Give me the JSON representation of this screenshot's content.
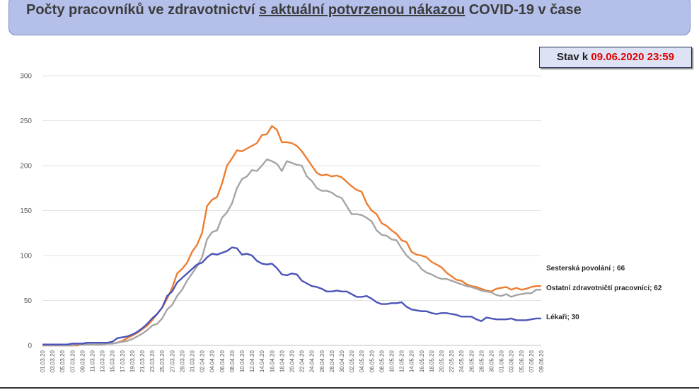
{
  "header": {
    "title_pre": "Počty pracovníků ve zdravotnictví ",
    "title_underlined": "s aktuální potvrzenou nákazou",
    "title_post": " COVID-19 v čase"
  },
  "status": {
    "prefix": "Stav k ",
    "datetime": "09.06.2020 23:59"
  },
  "chart_data": {
    "type": "line",
    "ylim": [
      0,
      300
    ],
    "yticks": [
      0,
      50,
      100,
      150,
      200,
      250,
      300
    ],
    "grid": "horizontal",
    "x": [
      "01.03.20",
      "02.03.20",
      "03.03.20",
      "04.03.20",
      "05.03.20",
      "06.03.20",
      "07.03.20",
      "08.03.20",
      "09.03.20",
      "10.03.20",
      "11.03.20",
      "12.03.20",
      "13.03.20",
      "14.03.20",
      "15.03.20",
      "16.03.20",
      "17.03.20",
      "18.03.20",
      "19.03.20",
      "20.03.20",
      "21.03.20",
      "22.03.20",
      "23.03.20",
      "24.03.20",
      "25.03.20",
      "26.03.20",
      "27.03.20",
      "28.03.20",
      "29.03.20",
      "30.03.20",
      "31.03.20",
      "01.04.20",
      "02.04.20",
      "03.04.20",
      "04.04.20",
      "05.04.20",
      "06.04.20",
      "07.04.20",
      "08.04.20",
      "09.04.20",
      "10.04.20",
      "11.04.20",
      "12.04.20",
      "13.04.20",
      "14.04.20",
      "15.04.20",
      "16.04.20",
      "17.04.20",
      "18.04.20",
      "19.04.20",
      "20.04.20",
      "21.04.20",
      "22.04.20",
      "23.04.20",
      "24.04.20",
      "25.04.20",
      "26.04.20",
      "27.04.20",
      "28.04.20",
      "29.04.20",
      "30.04.20",
      "01.05.20",
      "02.05.20",
      "03.05.20",
      "04.05.20",
      "05.05.20",
      "06.05.20",
      "07.05.20",
      "08.05.20",
      "09.05.20",
      "10.05.20",
      "11.05.20",
      "12.05.20",
      "13.05.20",
      "14.05.20",
      "15.05.20",
      "16.05.20",
      "17.05.20",
      "18.05.20",
      "19.05.20",
      "20.05.20",
      "21.05.20",
      "22.05.20",
      "23.05.20",
      "24.05.20",
      "25.05.20",
      "26.05.20",
      "27.05.20",
      "28.05.20",
      "29.05.20",
      "30.05.20",
      "31.05.20",
      "01.06.20",
      "02.06.20",
      "03.06.20",
      "04.06.20",
      "05.06.20",
      "06.06.20",
      "07.06.20",
      "08.06.20",
      "09.06.20"
    ],
    "xtick_labels": [
      "01.03.20",
      "03.03.20",
      "05.03.20",
      "07.03.20",
      "09.03.20",
      "11.03.20",
      "13.03.20",
      "15.03.20",
      "17.03.20",
      "19.03.20",
      "21.03.20",
      "23.03.20",
      "25.03.20",
      "27.03.20",
      "29.03.20",
      "31.03.20",
      "02.04.20",
      "04.04.20",
      "06.04.20",
      "08.04.20",
      "10.04.20",
      "12.04.20",
      "14.04.20",
      "16.04.20",
      "18.04.20",
      "20.04.20",
      "22.04.20",
      "24.04.20",
      "26.04.20",
      "28.04.20",
      "30.04.20",
      "02.05.20",
      "04.05.20",
      "06.05.20",
      "08.05.20",
      "10.05.20",
      "12.05.20",
      "14.05.20",
      "16.05.20",
      "18.05.20",
      "20.05.20",
      "22.05.20",
      "24.05.20",
      "26.05.20",
      "28.05.20",
      "30.05.20",
      "01.06.20",
      "03.06.20",
      "05.06.20",
      "07.06.20",
      "09.06.20"
    ],
    "series": [
      {
        "name": "Sesterská povolání",
        "end_label": "Sesterská povolání ; 66",
        "color": "#ed7d31",
        "values": [
          0,
          0,
          0,
          0,
          0,
          0,
          0,
          0,
          1,
          1,
          1,
          1,
          1,
          2,
          2,
          3,
          5,
          8,
          11,
          14,
          18,
          22,
          28,
          35,
          42,
          52,
          64,
          80,
          85,
          92,
          104,
          112,
          125,
          155,
          162,
          165,
          180,
          200,
          208,
          217,
          216,
          219,
          222,
          225,
          234,
          235,
          244,
          240,
          226,
          226,
          225,
          222,
          216,
          208,
          200,
          192,
          189,
          190,
          188,
          189,
          187,
          182,
          177,
          173,
          171,
          158,
          150,
          146,
          136,
          133,
          128,
          124,
          117,
          115,
          104,
          101,
          100,
          98,
          93,
          90,
          87,
          81,
          77,
          73,
          72,
          68,
          66,
          65,
          63,
          61,
          60,
          63,
          64,
          65,
          62,
          64,
          62,
          63,
          65,
          66,
          66
        ]
      },
      {
        "name": "Ostatní zdravotničtí pracovníci",
        "end_label": "Ostatní zdravotničtí pracovníci; 62",
        "color": "#a5a5a5",
        "values": [
          0,
          0,
          0,
          0,
          0,
          0,
          0,
          1,
          1,
          1,
          1,
          1,
          1,
          2,
          2,
          3,
          4,
          5,
          7,
          10,
          13,
          17,
          22,
          24,
          30,
          40,
          45,
          55,
          62,
          72,
          80,
          88,
          98,
          118,
          126,
          128,
          142,
          148,
          158,
          175,
          185,
          188,
          195,
          194,
          200,
          207,
          205,
          202,
          194,
          205,
          203,
          201,
          200,
          188,
          183,
          175,
          172,
          172,
          170,
          166,
          164,
          155,
          146,
          146,
          145,
          142,
          138,
          128,
          123,
          122,
          118,
          117,
          108,
          100,
          95,
          92,
          85,
          81,
          79,
          76,
          74,
          74,
          72,
          70,
          68,
          66,
          65,
          63,
          61,
          60,
          59,
          56,
          55,
          57,
          54,
          56,
          57,
          58,
          58,
          62,
          62
        ]
      },
      {
        "name": "Lékaři",
        "end_label": "Lékaři; 30",
        "color": "#4b54b8",
        "values": [
          1,
          1,
          1,
          1,
          1,
          1,
          2,
          2,
          2,
          3,
          3,
          3,
          3,
          3,
          4,
          8,
          9,
          10,
          12,
          15,
          19,
          24,
          30,
          35,
          42,
          55,
          60,
          70,
          75,
          80,
          85,
          90,
          92,
          98,
          102,
          101,
          103,
          105,
          109,
          108,
          101,
          102,
          100,
          94,
          91,
          90,
          91,
          86,
          79,
          78,
          80,
          79,
          72,
          69,
          66,
          65,
          63,
          60,
          60,
          61,
          60,
          60,
          57,
          54,
          54,
          55,
          52,
          48,
          46,
          46,
          47,
          47,
          48,
          43,
          40,
          39,
          38,
          38,
          36,
          35,
          36,
          36,
          35,
          34,
          32,
          32,
          32,
          29,
          27,
          31,
          30,
          29,
          29,
          29,
          30,
          28,
          28,
          28,
          29,
          30,
          30
        ]
      }
    ]
  }
}
